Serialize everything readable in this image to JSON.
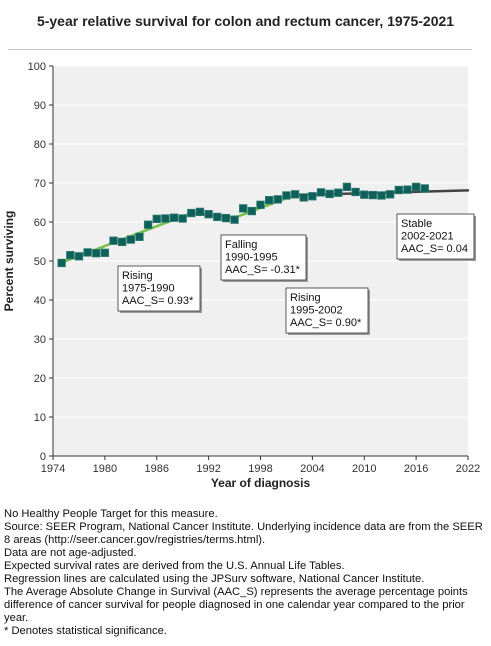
{
  "chart_data": {
    "type": "line",
    "title": "5-year relative survival for colon and rectum cancer, 1975-2021",
    "xlabel": "Year of diagnosis",
    "ylabel": "Percent surviving",
    "xlim": [
      1974,
      2022
    ],
    "ylim": [
      0,
      100
    ],
    "x_ticks": [
      1974,
      1980,
      1986,
      1992,
      1998,
      2004,
      2010,
      2016,
      2022
    ],
    "y_ticks": [
      0,
      10,
      20,
      30,
      40,
      50,
      60,
      70,
      80,
      90,
      100
    ],
    "grid": "horizontal",
    "observed": {
      "x": [
        1975,
        1976,
        1977,
        1978,
        1979,
        1980,
        1981,
        1982,
        1983,
        1984,
        1985,
        1986,
        1987,
        1988,
        1989,
        1990,
        1991,
        1992,
        1993,
        1994,
        1995,
        1996,
        1997,
        1998,
        1999,
        2000,
        2001,
        2002,
        2003,
        2004,
        2005,
        2006,
        2007,
        2008,
        2009,
        2010,
        2011,
        2012,
        2013,
        2014,
        2015,
        2016,
        2017
      ],
      "y": [
        49.5,
        51.5,
        51.2,
        52.2,
        52.0,
        52.1,
        55.2,
        54.9,
        55.5,
        56.2,
        59.3,
        60.8,
        60.9,
        61.1,
        60.9,
        62.3,
        62.6,
        62.0,
        61.3,
        61.0,
        60.6,
        63.5,
        62.8,
        64.4,
        65.6,
        65.8,
        66.8,
        67.1,
        66.3,
        66.6,
        67.6,
        67.2,
        67.5,
        69.0,
        67.7,
        67.0,
        66.9,
        66.8,
        67.1,
        68.2,
        68.3,
        69.0,
        68.6
      ]
    },
    "regression_segments": [
      {
        "x0": 1975,
        "y0": 49.6,
        "x1": 1990,
        "y1": 62.3,
        "color": "#77c04a"
      },
      {
        "x0": 1990,
        "y0": 62.3,
        "x1": 1995,
        "y1": 61.1,
        "color": "#e0504a"
      },
      {
        "x0": 1995,
        "y0": 61.1,
        "x1": 2002,
        "y1": 66.9,
        "color": "#77c04a"
      },
      {
        "x0": 2002,
        "y0": 66.9,
        "x1": 2022,
        "y1": 68.1,
        "color": "#444444"
      }
    ],
    "annotations": [
      {
        "lines": [
          "Rising",
          "1975-1990",
          "AAC_S=  0.93*"
        ],
        "anchor_x": 1981.5,
        "anchor_y": 48.6
      },
      {
        "lines": [
          "Falling",
          "1990-1995",
          "AAC_S= -0.31*"
        ],
        "anchor_x": 1993.4,
        "anchor_y": 56.7
      },
      {
        "lines": [
          "Rising",
          "1995-2002",
          "AAC_S=  0.90*"
        ],
        "anchor_x": 2001.0,
        "anchor_y": 43.0
      },
      {
        "lines": [
          "Stable",
          "2002-2021",
          "AAC_S=  0.04"
        ],
        "anchor_x": 2013.8,
        "anchor_y": 62.1
      }
    ],
    "colors": {
      "marker_fill": "#0f5f5a",
      "marker_stroke": "#2c7c70",
      "plot_bg": "#f0f0f0",
      "gridline": "#ffffff"
    }
  },
  "notes": [
    "No Healthy People Target for this measure.",
    "Source: SEER Program, National Cancer Institute. Underlying incidence data are from the SEER 8 areas (http://seer.cancer.gov/registries/terms.html).",
    "Data are not age-adjusted.",
    "Expected survival rates are derived from the U.S. Annual Life Tables.",
    "Regression lines are calculated using the JPSurv software, National Cancer Institute.",
    "The Average Absolute Change in Survival (AAC_S) represents the average percentage points difference of cancer survival for people diagnosed in one calendar year compared to the prior year.",
    "* Denotes statistical significance."
  ]
}
